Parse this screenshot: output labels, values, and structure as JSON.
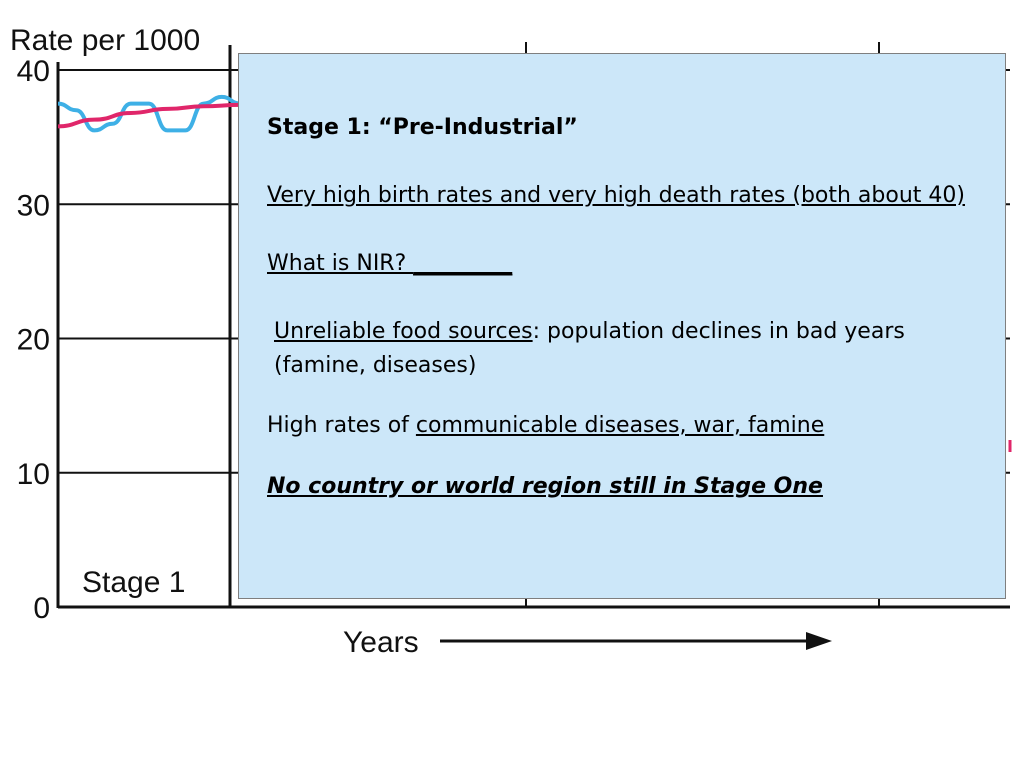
{
  "chart_data": {
    "type": "line",
    "ylabel": "Rate per 1000",
    "yticks": [
      0,
      10,
      20,
      30,
      40
    ],
    "ylim": [
      0,
      40
    ],
    "xlabel": "Years",
    "stage_label": "Stage 1",
    "grid": true,
    "series": [
      {
        "name": "",
        "color": "#3eb0e6",
        "style": "oscillating",
        "x": [
          0,
          0.1,
          0.2,
          0.3,
          0.4,
          0.5,
          0.6,
          0.7,
          0.8,
          0.9,
          1.0
        ],
        "values": [
          37.5,
          37,
          35.5,
          36,
          37.5,
          37.5,
          35.5,
          35.5,
          37.5,
          38,
          37.5
        ]
      },
      {
        "name": "",
        "color": "#e0266a",
        "style": "smooth",
        "x": [
          0,
          0.2,
          0.4,
          0.6,
          0.8,
          1.0
        ],
        "values": [
          35.8,
          36.3,
          36.8,
          37.1,
          37.3,
          37.4
        ]
      }
    ]
  },
  "overlay": {
    "heading": "Stage 1:  “Pre-Industrial”",
    "birth_death": "Very high birth rates and very high death rates (both about 40)",
    "nir_question": "What is NIR? ",
    "nir_blank": "_________",
    "food_link": "Unreliable food sources",
    "food_rest": ": population  declines in bad years (famine, diseases)",
    "disease_prefix": "High rates of ",
    "disease_link": "communicable diseases, war, famine",
    "final_note": "No country or world region still in Stage One"
  }
}
